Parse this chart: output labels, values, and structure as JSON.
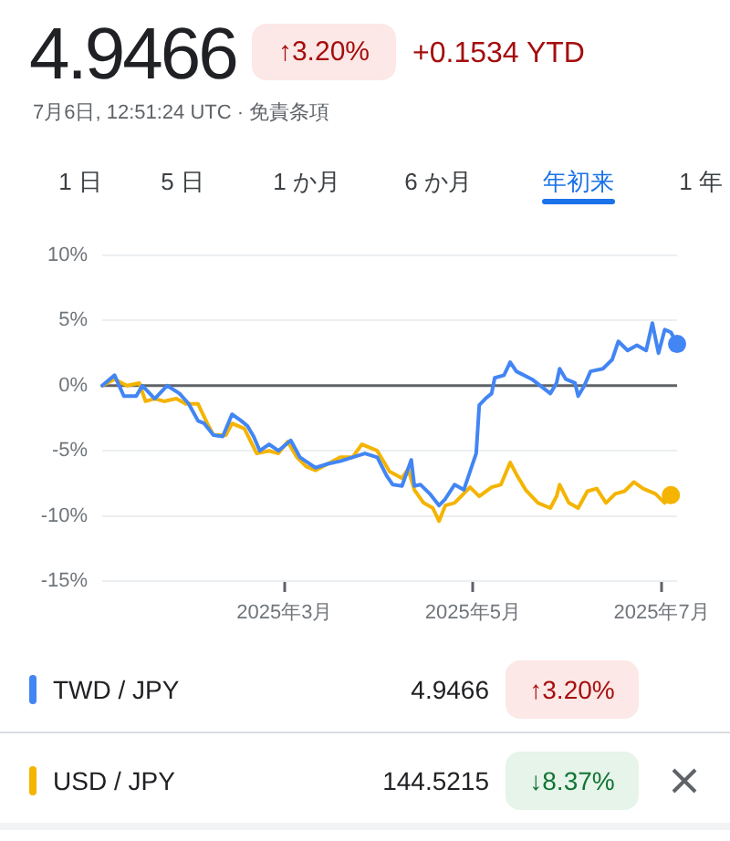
{
  "chart_data": {
    "type": "line",
    "title": "4.9466",
    "subtitle": "7月6日, 12:51:24 UTC · 免責条項",
    "annotations": [
      "↑3.20%",
      "+0.1534 YTD",
      "1 日",
      "5 日",
      "1 か月",
      "6 か月",
      "年初来",
      "1 年",
      "4.9466",
      "↑3.20%",
      "144.5215",
      "↓8.37%"
    ],
    "xlim": [
      "2025-01-01",
      "2025-07-06"
    ],
    "xticks": [
      {
        "value": "2025-03-01",
        "label": "2025年3月"
      },
      {
        "value": "2025-05-01",
        "label": "2025年5月"
      },
      {
        "value": "2025-07-01",
        "label": "2025年7月"
      }
    ],
    "ylim": [
      -15,
      10
    ],
    "yticks": [
      {
        "value": 10,
        "label": "10%"
      },
      {
        "value": 5,
        "label": "5%"
      },
      {
        "value": 0,
        "label": "0%"
      },
      {
        "value": -5,
        "label": "-5%"
      },
      {
        "value": -10,
        "label": "-10%"
      },
      {
        "value": -15,
        "label": "-15%"
      }
    ],
    "grid": "y",
    "legend": "bottom",
    "ref_lines": [
      {
        "axis": "y",
        "value": 0,
        "color": "#5f6368"
      }
    ],
    "series": [
      {
        "name": "TWD / JPY",
        "color": "#4285f4",
        "x": [
          "2025-01-01",
          "2025-01-05",
          "2025-01-08",
          "2025-01-12",
          "2025-01-14",
          "2025-01-18",
          "2025-01-22",
          "2025-01-26",
          "2025-01-29",
          "2025-02-01",
          "2025-02-03",
          "2025-02-06",
          "2025-02-09",
          "2025-02-12",
          "2025-02-15",
          "2025-02-17",
          "2025-02-19",
          "2025-02-21",
          "2025-02-24",
          "2025-02-27",
          "2025-03-03",
          "2025-03-06",
          "2025-03-11",
          "2025-03-15",
          "2025-03-19",
          "2025-03-23",
          "2025-03-27",
          "2025-03-31",
          "2025-04-03",
          "2025-04-05",
          "2025-04-08",
          "2025-04-11",
          "2025-04-12",
          "2025-04-14",
          "2025-04-17",
          "2025-04-20",
          "2025-04-22",
          "2025-04-25",
          "2025-04-28",
          "2025-04-30",
          "2025-05-02",
          "2025-05-03",
          "2025-05-05",
          "2025-05-07",
          "2025-05-08",
          "2025-05-11",
          "2025-05-13",
          "2025-05-15",
          "2025-05-20",
          "2025-05-26",
          "2025-05-28",
          "2025-05-29",
          "2025-05-31",
          "2025-06-03",
          "2025-06-04",
          "2025-06-06",
          "2025-06-08",
          "2025-06-12",
          "2025-06-15",
          "2025-06-17",
          "2025-06-20",
          "2025-06-23",
          "2025-06-26",
          "2025-06-28",
          "2025-06-30",
          "2025-07-02",
          "2025-07-04",
          "2025-07-06"
        ],
        "values": [
          0,
          0.8,
          -0.8,
          -0.8,
          0,
          -1,
          0,
          -0.6,
          -1.4,
          -2.7,
          -2.9,
          -3.8,
          -3.9,
          -2.2,
          -2.7,
          -3.1,
          -3.9,
          -5,
          -4.5,
          -5,
          -4.2,
          -5.5,
          -6.3,
          -6,
          -5.8,
          -5.5,
          -5.2,
          -5.5,
          -6.9,
          -7.6,
          -7.7,
          -5.7,
          -7.7,
          -7.6,
          -8.3,
          -9.2,
          -8.7,
          -7.6,
          -8,
          -6.6,
          -5.2,
          -1.5,
          -1,
          -0.6,
          0.6,
          0.8,
          1.8,
          1.1,
          0.5,
          -0.6,
          0.2,
          1.3,
          0.5,
          0.2,
          -0.8,
          0,
          1.1,
          1.3,
          2,
          3.4,
          2.7,
          3.1,
          2.7,
          4.8,
          2.5,
          4.3,
          4.1,
          3.2
        ]
      },
      {
        "name": "USD / JPY",
        "color": "#f4b400",
        "x": [
          "2025-01-01",
          "2025-01-05",
          "2025-01-09",
          "2025-01-13",
          "2025-01-15",
          "2025-01-18",
          "2025-01-21",
          "2025-01-25",
          "2025-01-28",
          "2025-02-01",
          "2025-02-04",
          "2025-02-06",
          "2025-02-10",
          "2025-02-12",
          "2025-02-16",
          "2025-02-20",
          "2025-02-24",
          "2025-02-27",
          "2025-03-02",
          "2025-03-05",
          "2025-03-08",
          "2025-03-11",
          "2025-03-15",
          "2025-03-19",
          "2025-03-23",
          "2025-03-26",
          "2025-03-31",
          "2025-04-04",
          "2025-04-08",
          "2025-04-10",
          "2025-04-12",
          "2025-04-15",
          "2025-04-18",
          "2025-04-20",
          "2025-04-22",
          "2025-04-25",
          "2025-04-30",
          "2025-05-03",
          "2025-05-07",
          "2025-05-10",
          "2025-05-13",
          "2025-05-15",
          "2025-05-18",
          "2025-05-22",
          "2025-05-26",
          "2025-05-28",
          "2025-05-29",
          "2025-06-01",
          "2025-06-04",
          "2025-06-07",
          "2025-06-10",
          "2025-06-13",
          "2025-06-16",
          "2025-06-19",
          "2025-06-22",
          "2025-06-25",
          "2025-06-29",
          "2025-07-02",
          "2025-07-04"
        ],
        "values": [
          0,
          0.5,
          0,
          0.2,
          -1.2,
          -1,
          -1.2,
          -1,
          -1.4,
          -1.4,
          -2.9,
          -3.8,
          -3.8,
          -2.9,
          -3.3,
          -5.2,
          -5,
          -5.2,
          -4.3,
          -5.5,
          -6.2,
          -6.5,
          -6,
          -5.5,
          -5.5,
          -4.5,
          -5,
          -6.6,
          -7.1,
          -6.4,
          -8,
          -9,
          -9.4,
          -10.4,
          -9.2,
          -9,
          -7.8,
          -8.5,
          -7.8,
          -7.6,
          -5.9,
          -6.8,
          -8,
          -9,
          -9.4,
          -8.5,
          -7.6,
          -9,
          -9.4,
          -8.1,
          -7.9,
          -9,
          -8.3,
          -8.1,
          -7.4,
          -7.9,
          -8.3,
          -9,
          -8.4
        ]
      }
    ]
  }
}
